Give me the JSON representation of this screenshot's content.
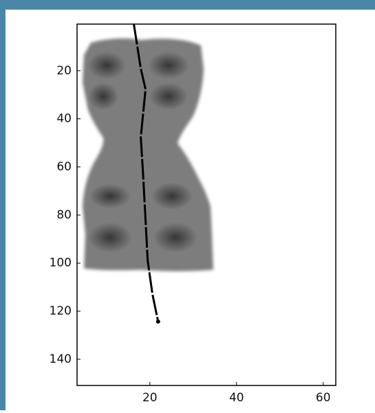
{
  "chart_data": {
    "type": "line",
    "x": [
      16.3,
      17.9,
      19.0,
      17.9,
      18.4,
      19.0,
      19.5,
      20.6,
      21.9
    ],
    "series": [
      {
        "color": "#000000",
        "values": [
          0.6,
          19.1,
          27.7,
          47.7,
          62,
          82,
          99,
          113,
          124.3
        ]
      }
    ],
    "xlim": [
      3.2,
      62.9
    ],
    "xticks": [
      20,
      40,
      60
    ],
    "ylim": [
      0.6,
      150.9
    ],
    "yticks": [
      20,
      40,
      60,
      80,
      100,
      120,
      140
    ],
    "y_reversed": true
  }
}
